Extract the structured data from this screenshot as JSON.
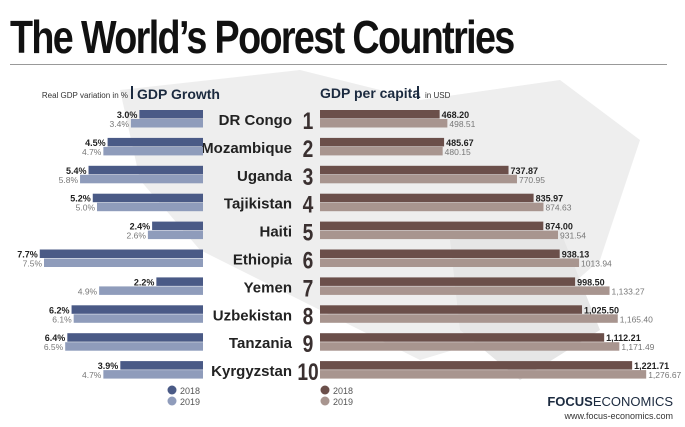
{
  "title": "The World’s Poorest Countries",
  "chart_data": [
    {
      "type": "bar",
      "orientation": "horizontal",
      "title": "GDP Growth",
      "subtitle": "Real GDP variation in %",
      "categories": [
        "DR Congo",
        "Mozambique",
        "Uganda",
        "Tajikistan",
        "Haiti",
        "Ethiopia",
        "Yemen",
        "Uzbekistan",
        "Tanzania",
        "Kyrgyzstan"
      ],
      "series": [
        {
          "name": "2018",
          "color": "#4a5a86",
          "values": [
            3.0,
            4.5,
            5.4,
            5.2,
            2.4,
            7.7,
            2.2,
            6.2,
            6.4,
            3.9
          ],
          "labels": [
            "3.0%",
            "4.5%",
            "5.4%",
            "5.2%",
            "2.4%",
            "7.7%",
            "2.2%",
            "6.2%",
            "6.4%",
            "3.9%"
          ]
        },
        {
          "name": "2019",
          "color": "#8f9cbb",
          "values": [
            3.4,
            4.7,
            5.8,
            5.0,
            2.6,
            7.5,
            4.9,
            6.1,
            6.5,
            4.7
          ],
          "labels": [
            "3.4%",
            "4.7%",
            "5.8%",
            "5.0%",
            "2.6%",
            "7.5%",
            "4.9%",
            "6.1%",
            "6.5%",
            "4.7%"
          ]
        }
      ],
      "legend": "bottom-right"
    },
    {
      "type": "bar",
      "orientation": "horizontal",
      "title": "GDP per capita",
      "subtitle": "in USD",
      "ranks": [
        "1",
        "2",
        "3",
        "4",
        "5",
        "6",
        "7",
        "8",
        "9",
        "10"
      ],
      "categories": [
        "DR Congo",
        "Mozambique",
        "Uganda",
        "Tajikistan",
        "Haiti",
        "Ethiopia",
        "Yemen",
        "Uzbekistan",
        "Tanzania",
        "Kyrgyzstan"
      ],
      "series": [
        {
          "name": "2018",
          "color": "#6b4f4a",
          "values": [
            468.2,
            485.67,
            737.87,
            835.97,
            874.0,
            938.13,
            998.5,
            1025.5,
            1112.21,
            1221.71
          ],
          "labels": [
            "468.20",
            "485.67",
            "737.87",
            "835.97",
            "874.00",
            "938.13",
            "998.50",
            "1,025.50",
            "1,112.21",
            "1,221.71"
          ]
        },
        {
          "name": "2019",
          "color": "#a8958f",
          "values": [
            498.51,
            480.15,
            770.95,
            874.63,
            931.54,
            1013.94,
            1133.27,
            1165.4,
            1171.49,
            1276.67
          ],
          "labels": [
            "498.51",
            "480.15",
            "770.95",
            "874.63",
            "931.54",
            "1013.94",
            "1,133.27",
            "1,165.40",
            "1,171.49",
            "1,276.67"
          ]
        }
      ],
      "legend": "bottom-left"
    }
  ],
  "logo": {
    "bold": "FOCUS",
    "regular": "ECONOMICS",
    "url": "www.focus-economics.com"
  }
}
